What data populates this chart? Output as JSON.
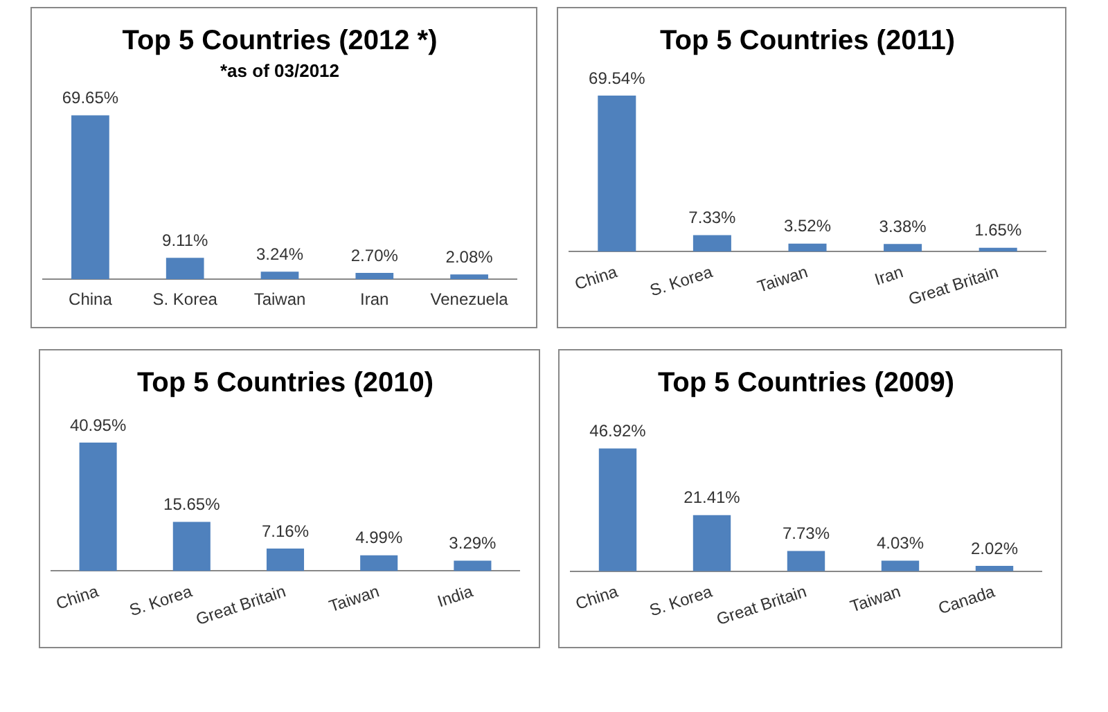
{
  "chart_data": [
    {
      "type": "bar",
      "title": "Top 5 Countries (2012 *)",
      "subtitle": "*as of 03/2012",
      "categories": [
        "China",
        "S. Korea",
        "Taiwan",
        "Iran",
        "Venezuela"
      ],
      "values": [
        69.65,
        9.11,
        3.24,
        2.7,
        2.08
      ],
      "color": "#4f81bd",
      "value_labels": [
        "69.65%",
        "9.11%",
        "3.24%",
        "2.70%",
        "2.08%"
      ],
      "legend": false,
      "grid": false,
      "tick_labels": "x"
    },
    {
      "type": "bar",
      "title": "Top 5 Countries (2011)",
      "categories": [
        "China",
        "S. Korea",
        "Taiwan",
        "Iran",
        "Great Britain"
      ],
      "values": [
        69.54,
        7.33,
        3.52,
        3.38,
        1.65
      ],
      "color": "#4f81bd",
      "value_labels": [
        "69.54%",
        "7.33%",
        "3.52%",
        "3.38%",
        "1.65%"
      ],
      "legend": false,
      "grid": false,
      "tick_labels": "x"
    },
    {
      "type": "bar",
      "title": "Top 5 Countries (2010)",
      "categories": [
        "China",
        "S. Korea",
        "Great Britain",
        "Taiwan",
        "India"
      ],
      "values": [
        40.95,
        15.65,
        7.16,
        4.99,
        3.29
      ],
      "color": "#4f81bd",
      "value_labels": [
        "40.95%",
        "15.65%",
        "7.16%",
        "4.99%",
        "3.29%"
      ],
      "legend": false,
      "grid": false,
      "tick_labels": "x"
    },
    {
      "type": "bar",
      "title": "Top 5 Countries (2009)",
      "categories": [
        "China",
        "S. Korea",
        "Great Britain",
        "Taiwan",
        "Canada"
      ],
      "values": [
        46.92,
        21.41,
        7.73,
        4.03,
        2.02
      ],
      "color": "#4f81bd",
      "value_labels": [
        "46.92%",
        "21.41%",
        "7.73%",
        "4.03%",
        "2.02%"
      ],
      "legend": false,
      "grid": false,
      "tick_labels": "x"
    }
  ]
}
